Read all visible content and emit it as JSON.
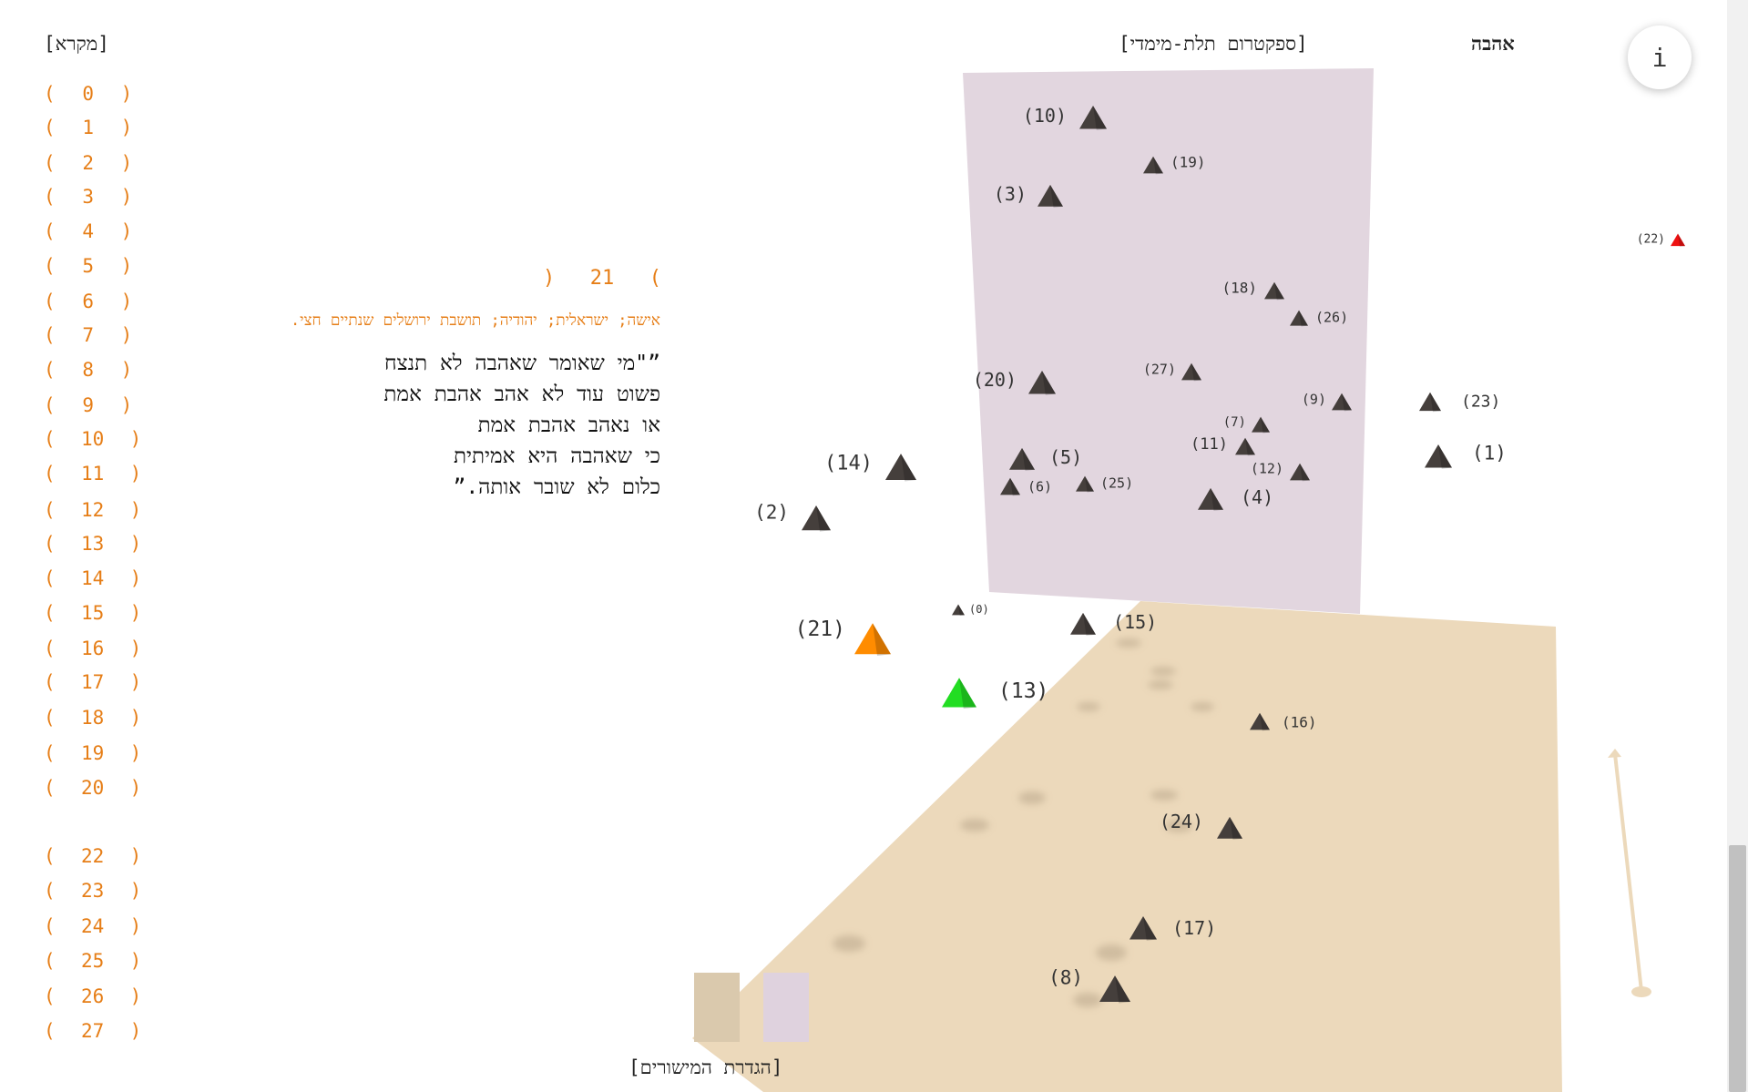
{
  "header": {
    "legend_title": "[מקרא]",
    "spectrum_title": "[ספקטרום תלת-מימדי]",
    "topic_title": "אהבה",
    "info_label": "i"
  },
  "legend": [
    {
      "num": "0"
    },
    {
      "num": "1"
    },
    {
      "num": "2"
    },
    {
      "num": "3"
    },
    {
      "num": "4"
    },
    {
      "num": "5"
    },
    {
      "num": "6"
    },
    {
      "num": "7"
    },
    {
      "num": "8"
    },
    {
      "num": "9"
    },
    {
      "num": "10"
    },
    {
      "num": "11"
    },
    {
      "num": "12"
    },
    {
      "num": "13"
    },
    {
      "num": "14"
    },
    {
      "num": "15"
    },
    {
      "num": "16"
    },
    {
      "num": "17"
    },
    {
      "num": "18"
    },
    {
      "num": "19"
    },
    {
      "num": "20"
    },
    {
      "num": "22"
    },
    {
      "num": "23"
    },
    {
      "num": "24"
    },
    {
      "num": "25"
    },
    {
      "num": "26"
    },
    {
      "num": "27"
    }
  ],
  "legend_brackets": {
    "open": "(",
    "close": ")"
  },
  "selected": {
    "number": "21",
    "meta": "אישה; ישראלית; יהודיה; תושבת ירושלים שנתיים חצי.",
    "quote_lines": [
      "”\"מי שאומר שאהבה לא תנצח",
      "פשוט עוד לא אהב אהבת אמת",
      "או נאהב אהבת אמת",
      "כי שאהבה היא אמיתית",
      "כלום לא שובר אותה.”"
    ]
  },
  "markers": [
    {
      "label": "(10)"
    },
    {
      "label": "(19)"
    },
    {
      "label": "(3)"
    },
    {
      "label": "(18)"
    },
    {
      "label": "(26)"
    },
    {
      "label": "(20)"
    },
    {
      "label": "(27)"
    },
    {
      "label": "(9)"
    },
    {
      "label": "(23)"
    },
    {
      "label": "(7)"
    },
    {
      "label": "(11)"
    },
    {
      "label": "(1)"
    },
    {
      "label": "(14)"
    },
    {
      "label": "(5)"
    },
    {
      "label": "(12)"
    },
    {
      "label": "(6)"
    },
    {
      "label": "(25)"
    },
    {
      "label": "(4)"
    },
    {
      "label": "(2)"
    },
    {
      "label": "(0)"
    },
    {
      "label": "(15)"
    },
    {
      "label": "(21)"
    },
    {
      "label": "(13)"
    },
    {
      "label": "(16)"
    },
    {
      "label": "(24)"
    },
    {
      "label": "(17)"
    },
    {
      "label": "(8)"
    },
    {
      "label": "(22)"
    }
  ],
  "plane_settings_label": "[הגדרת המישורים]",
  "colors": {
    "accent": "#e67e17",
    "marker_default": "#453f3c",
    "marker_selected": "#ff8c00",
    "marker_green": "#22dd22",
    "marker_red": "#ee1111",
    "plane_vertical": "#e2d6df",
    "plane_floor": "#ecd9bb",
    "swatch_floor": "#dac9ad",
    "swatch_vertical": "#dfd2de"
  }
}
